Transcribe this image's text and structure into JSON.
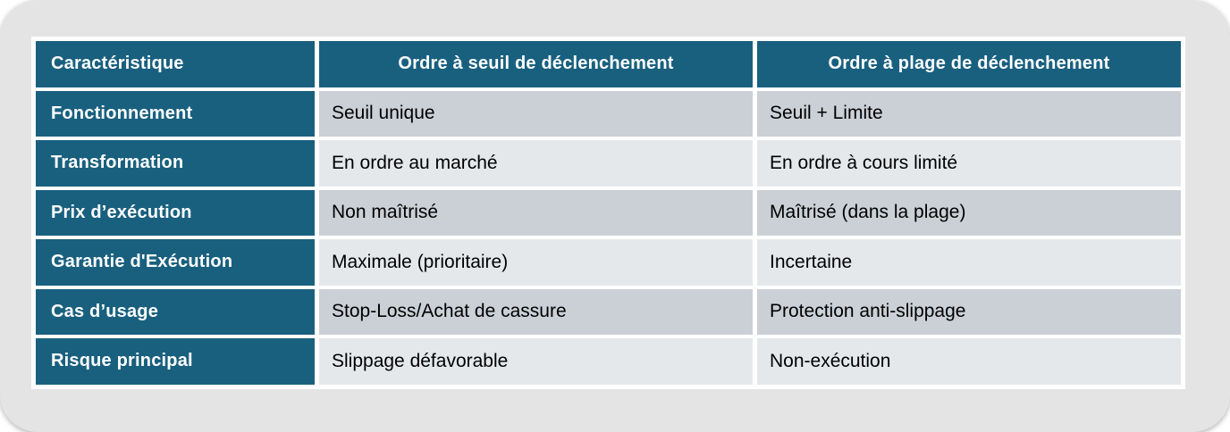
{
  "colors": {
    "page_outside": "#ffffff",
    "slide_background": "#e4e4e5",
    "header_background": "#19607f",
    "header_text": "#ffffff",
    "row_label_background": "#19607f",
    "row_label_text": "#ffffff",
    "cell_text": "#000000",
    "row_band_dark": "#cbd0d6",
    "row_band_light": "#e5e8eb",
    "cell_separator": "#ffffff"
  },
  "table": {
    "columns": [
      "Caractéristique",
      "Ordre à seuil de déclenchement",
      "Ordre à plage de déclenchement"
    ],
    "rows": [
      {
        "label": "Fonctionnement",
        "seuil": "Seuil unique",
        "plage": "Seuil + Limite"
      },
      {
        "label": "Transformation",
        "seuil": "En ordre au marché",
        "plage": "En ordre à cours limité"
      },
      {
        "label": "Prix d’exécution",
        "seuil": "Non maîtrisé",
        "plage": "Maîtrisé (dans la plage)"
      },
      {
        "label": "Garantie d'Exécution",
        "seuil": "Maximale (prioritaire)",
        "plage": "Incertaine"
      },
      {
        "label": "Cas d’usage",
        "seuil": "Stop-Loss/Achat de cassure",
        "plage": "Protection anti-slippage"
      },
      {
        "label": "Risque principal",
        "seuil": "Slippage défavorable",
        "plage": "Non-exécution"
      }
    ]
  }
}
